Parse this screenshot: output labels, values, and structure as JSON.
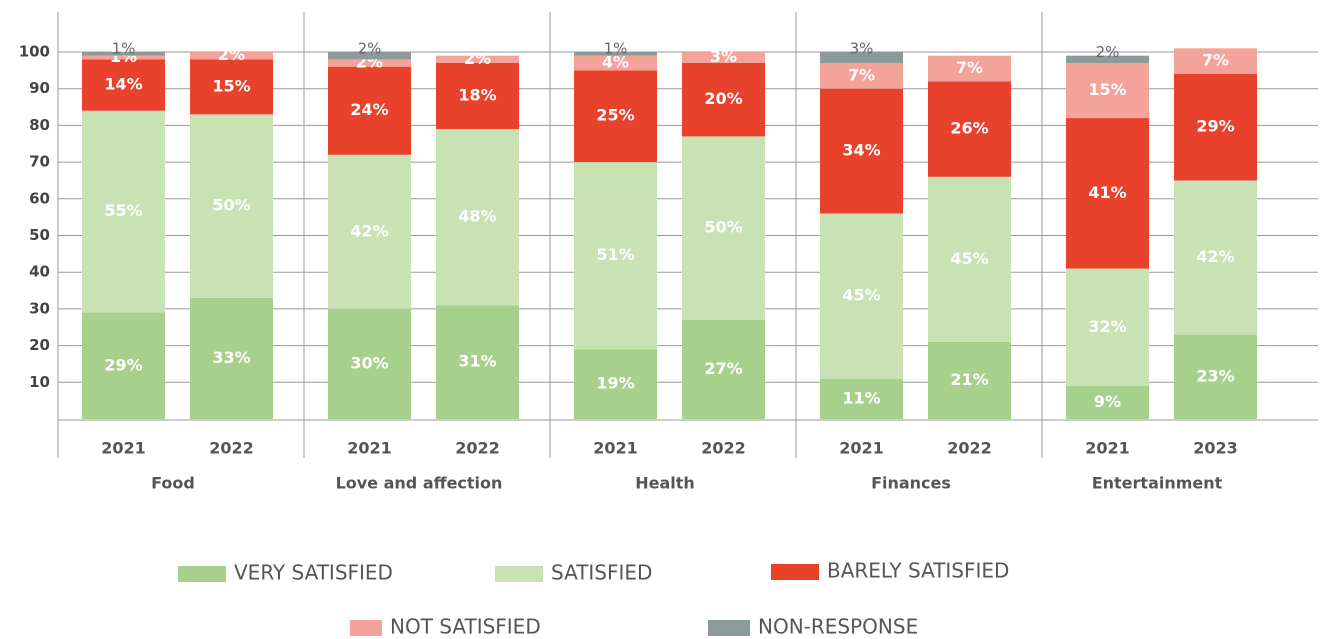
{
  "chart_data": {
    "type": "stacked-bar",
    "groups": [
      "Food",
      "Love and affection",
      "Health",
      "Finances",
      "Entertainment"
    ],
    "categories": [
      "2021",
      "2022",
      "2021",
      "2022",
      "2021",
      "2022",
      "2021",
      "2022",
      "2021",
      "2023"
    ],
    "series": [
      {
        "name": "VERY SATISFIED",
        "color": "#a8d08d",
        "values": [
          29,
          33,
          30,
          31,
          19,
          27,
          11,
          21,
          9,
          23
        ],
        "value_labels": [
          "29%",
          "33%",
          "30%",
          "31%",
          "19%",
          "27%",
          "11%",
          "21%",
          "9%",
          "23%"
        ]
      },
      {
        "name": "SATISFIED",
        "color": "#c9e2b3",
        "values": [
          55,
          50,
          42,
          48,
          51,
          50,
          45,
          45,
          32,
          42
        ],
        "value_labels": [
          "55%",
          "50%",
          "42%",
          "48%",
          "51%",
          "50%",
          "45%",
          "45%",
          "32%",
          "42%"
        ]
      },
      {
        "name": "BARELY SATISFIED",
        "color": "#e8412c",
        "values": [
          14,
          15,
          24,
          18,
          25,
          20,
          34,
          26,
          41,
          29
        ],
        "value_labels": [
          "14%",
          "15%",
          "24%",
          "18%",
          "25%",
          "20%",
          "34%",
          "26%",
          "41%",
          "29%"
        ]
      },
      {
        "name": "NOT SATISFIED",
        "color": "#f4a39a",
        "values": [
          1,
          2,
          2,
          2,
          4,
          3,
          7,
          7,
          15,
          7
        ],
        "value_labels": [
          "1%",
          "2%",
          "2%",
          "2%",
          "4%",
          "3%",
          "7%",
          "7%",
          "15%",
          "7%"
        ]
      },
      {
        "name": "NON-RESPONSE",
        "color": "#8c9a99",
        "values": [
          1,
          null,
          2,
          null,
          1,
          null,
          3,
          null,
          2,
          null
        ],
        "value_labels": [
          "1%",
          null,
          "2%",
          null,
          "1%",
          null,
          "3%",
          null,
          "2%",
          null
        ]
      }
    ],
    "ylim": [
      0,
      100
    ],
    "yticks": [
      10,
      20,
      30,
      40,
      50,
      60,
      70,
      80,
      90,
      100
    ],
    "grid": true
  }
}
